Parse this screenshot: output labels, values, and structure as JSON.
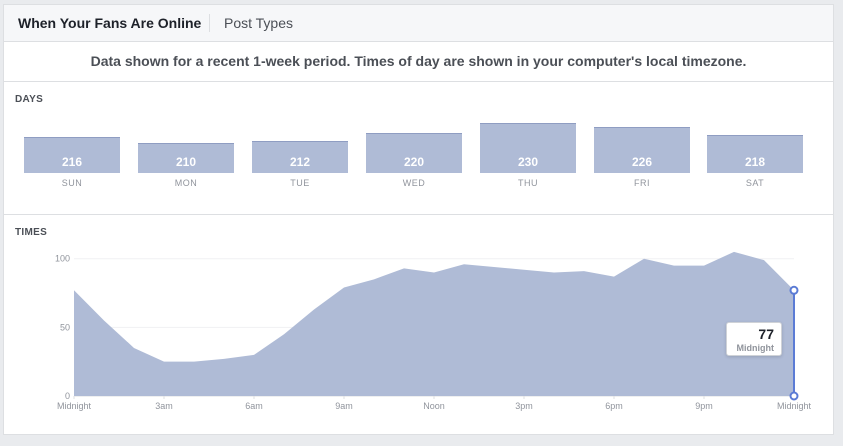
{
  "tabs": [
    {
      "label": "When Your Fans Are Online",
      "active": true
    },
    {
      "label": "Post Types",
      "active": false
    }
  ],
  "notice": "Data shown for a recent 1-week period. Times of day are shown in your computer's local timezone.",
  "days_section": {
    "label": "DAYS"
  },
  "times_section": {
    "label": "TIMES"
  },
  "colors": {
    "bar_fill": "#afbbd6",
    "area_fill": "#afbbd6",
    "marker": "#5b7bd5"
  },
  "tooltip": {
    "value": "77",
    "label": "Midnight"
  },
  "chart_data": [
    {
      "type": "bar",
      "categories": [
        "SUN",
        "MON",
        "TUE",
        "WED",
        "THU",
        "FRI",
        "SAT"
      ],
      "values": [
        216,
        210,
        212,
        220,
        230,
        226,
        218
      ],
      "data_labels": true
    },
    {
      "type": "area",
      "x_tick_labels": [
        "Midnight",
        "3am",
        "6am",
        "9am",
        "Noon",
        "3pm",
        "6pm",
        "9pm",
        "Midnight"
      ],
      "x": [
        0,
        1,
        2,
        3,
        4,
        5,
        6,
        7,
        8,
        9,
        10,
        11,
        12,
        13,
        14,
        15,
        16,
        17,
        18,
        19,
        20,
        21,
        22,
        23,
        24
      ],
      "values": [
        77,
        55,
        35,
        25,
        25,
        27,
        30,
        45,
        63,
        79,
        85,
        93,
        90,
        96,
        94,
        92,
        90,
        91,
        87,
        100,
        95,
        95,
        105,
        99,
        77
      ],
      "y_ticks": [
        0,
        50,
        100
      ],
      "ylim": [
        0,
        110
      ],
      "grid": true,
      "highlight": {
        "x": 24,
        "value": 77
      }
    }
  ]
}
